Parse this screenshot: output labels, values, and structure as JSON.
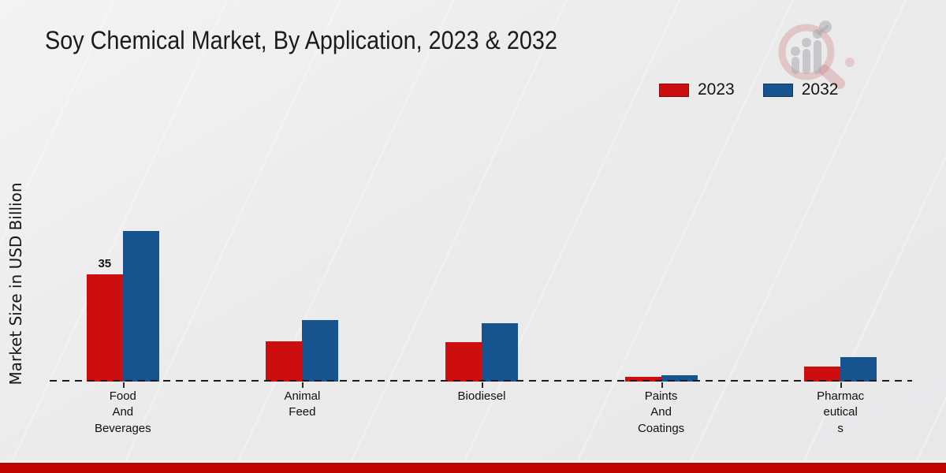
{
  "title": "Soy Chemical Market, By Application, 2023 & 2032",
  "chart_data": {
    "type": "bar",
    "title": "Soy Chemical Market, By Application, 2023 & 2032",
    "xlabel": "",
    "ylabel": "Market Size in USD Billion",
    "categories": [
      "Food And Beverages",
      "Animal Feed",
      "Biodiesel",
      "Paints And Coatings",
      "Pharmaceuticals"
    ],
    "category_display": [
      "Food\nAnd\nBeverages",
      "Animal\nFeed",
      "Biodiesel",
      "Paints\nAnd\nCoatings",
      "Pharmac\neutical\ns"
    ],
    "series": [
      {
        "name": "2023",
        "color": "#cc0e0e",
        "values": [
          35,
          13,
          12.8,
          1.5,
          5
        ],
        "value_labels": [
          "35",
          "",
          "",
          "",
          ""
        ]
      },
      {
        "name": "2032",
        "color": "#17538f",
        "values": [
          49,
          20,
          19,
          2,
          8
        ],
        "value_labels": [
          "",
          "",
          "",
          "",
          ""
        ]
      }
    ],
    "ylim": [
      0,
      55
    ],
    "grid": false,
    "legend_position": "top-right",
    "baseline_style": "dashed",
    "axis_ticks_visible": true
  },
  "watermark": {
    "name": "market-research-magnifier-logo",
    "ring_color": "#c65a5f",
    "bars_color": "#a8a8ad"
  },
  "footer": {
    "bar_color": "#c00500"
  }
}
